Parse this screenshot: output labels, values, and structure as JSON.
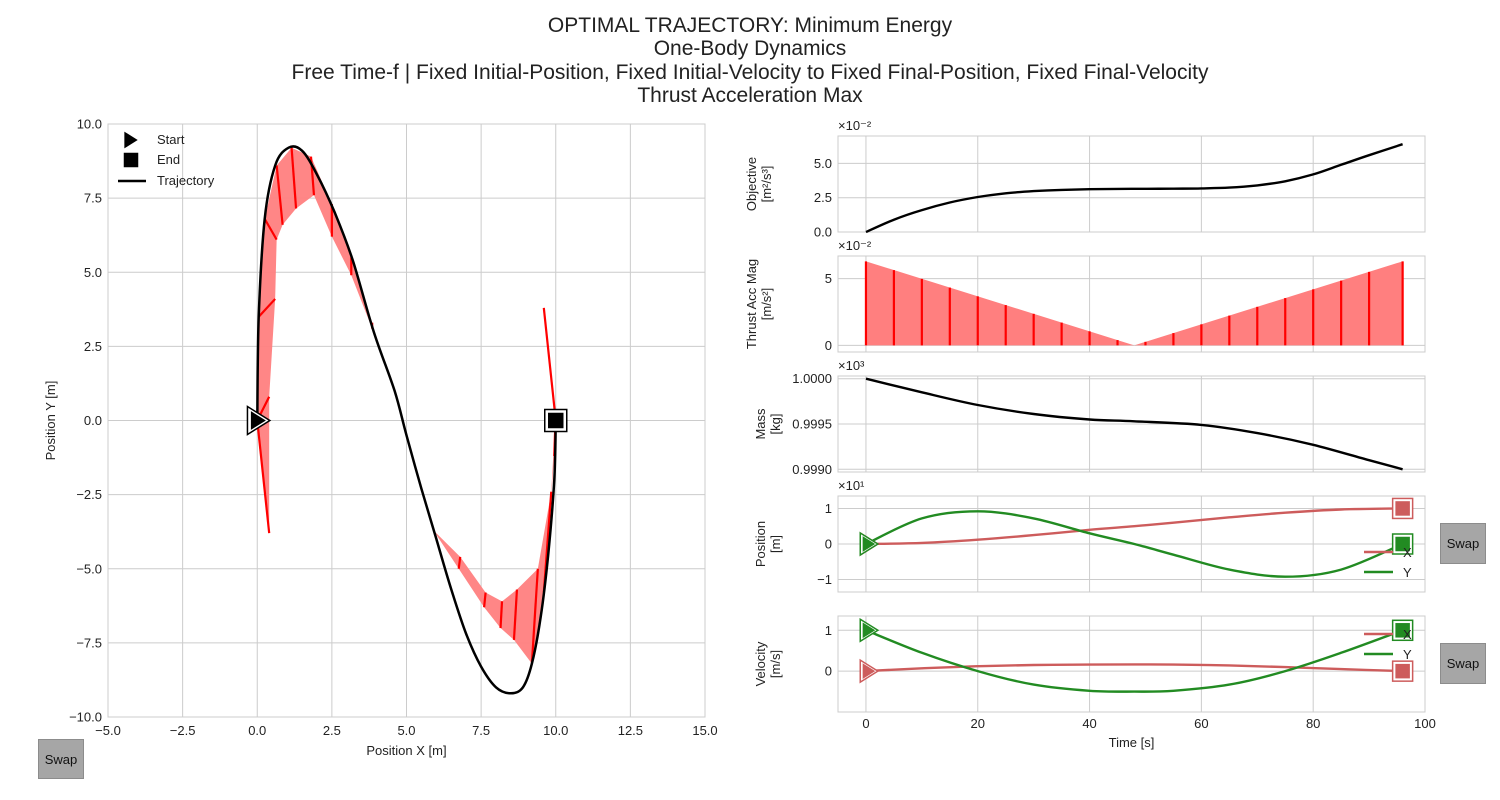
{
  "title_lines": [
    "OPTIMAL TRAJECTORY: Minimum Energy",
    "One-Body Dynamics",
    "Free Time-f | Fixed Initial-Position, Fixed Initial-Velocity to Fixed Final-Position, Fixed Final-Velocity",
    "Thrust Acceleration Max"
  ],
  "buttons": {
    "swap_main": "Swap",
    "swap_position": "Swap",
    "swap_velocity": "Swap"
  },
  "colors": {
    "trajectory": "#000000",
    "thrust": "#ff0000",
    "thrust_fill": "#ff7f7f",
    "x_series": "#cd5c5c",
    "y_series": "#228b22",
    "grid": "#cccccc"
  },
  "chart_data": [
    {
      "type": "line",
      "id": "trajectory",
      "xlabel": "Position X [m]",
      "ylabel": "Position Y [m]",
      "xlim": [
        -5,
        15
      ],
      "ylim": [
        -10,
        10
      ],
      "xticks": [
        -5.0,
        -2.5,
        0.0,
        2.5,
        5.0,
        7.5,
        10.0,
        12.5,
        15.0
      ],
      "yticks": [
        -10.0,
        -7.5,
        -5.0,
        -2.5,
        0.0,
        2.5,
        5.0,
        7.5,
        10.0
      ],
      "xtick_labels": [
        "−5.0",
        "−2.5",
        "0.0",
        "2.5",
        "5.0",
        "7.5",
        "10.0",
        "12.5",
        "15.0"
      ],
      "ytick_labels": [
        "−10.0",
        "−7.5",
        "−5.0",
        "−2.5",
        "0.0",
        "2.5",
        "5.0",
        "7.5",
        "10.0"
      ],
      "grid": true,
      "legend": {
        "placement": "top-left",
        "entries": [
          "Start",
          "End",
          "Trajectory"
        ]
      },
      "x": [
        0.0,
        0.05,
        0.25,
        0.6,
        1.05,
        1.5,
        2.0,
        2.6,
        3.2,
        3.9,
        4.6,
        5.0,
        5.5,
        6.0,
        6.5,
        7.0,
        7.5,
        8.0,
        8.5,
        8.9,
        9.2,
        9.5,
        9.75,
        9.95,
        10.0
      ],
      "y": [
        0.0,
        3.5,
        6.8,
        8.6,
        9.2,
        9.1,
        8.3,
        7.0,
        5.4,
        3.0,
        1.0,
        -0.5,
        -2.3,
        -4.0,
        -5.7,
        -7.2,
        -8.3,
        -9.0,
        -9.2,
        -9.0,
        -8.2,
        -6.6,
        -4.5,
        -2.0,
        0.0
      ],
      "thrust_arrows": [
        {
          "x": 0.0,
          "y": 0.0,
          "dx": 0.4,
          "dy": -3.8
        },
        {
          "x": 0.0,
          "y": 0.0,
          "dx": 0.4,
          "dy": 0.8
        },
        {
          "x": 0.05,
          "y": 3.5,
          "dx": 0.55,
          "dy": 0.6
        },
        {
          "x": 0.25,
          "y": 6.8,
          "dx": 0.4,
          "dy": -0.7
        },
        {
          "x": 0.65,
          "y": 8.6,
          "dx": 0.2,
          "dy": -2.0
        },
        {
          "x": 1.15,
          "y": 9.2,
          "dx": 0.15,
          "dy": -2.05
        },
        {
          "x": 1.8,
          "y": 8.9,
          "dx": 0.1,
          "dy": -1.3
        },
        {
          "x": 2.5,
          "y": 7.3,
          "dx": 0.0,
          "dy": -1.1
        },
        {
          "x": 3.15,
          "y": 5.5,
          "dx": 0.0,
          "dy": -0.6
        },
        {
          "x": 3.85,
          "y": 3.3,
          "dx": 0.0,
          "dy": -0.2
        },
        {
          "x": 5.9,
          "y": -3.7,
          "dx": 0.0,
          "dy": 0.0
        },
        {
          "x": 6.75,
          "y": -5.0,
          "dx": 0.05,
          "dy": 0.4
        },
        {
          "x": 7.6,
          "y": -6.3,
          "dx": 0.05,
          "dy": 0.5
        },
        {
          "x": 8.15,
          "y": -7.0,
          "dx": 0.05,
          "dy": 0.9
        },
        {
          "x": 8.6,
          "y": -7.4,
          "dx": 0.1,
          "dy": 1.7
        },
        {
          "x": 9.2,
          "y": -8.2,
          "dx": 0.2,
          "dy": 3.2
        },
        {
          "x": 9.6,
          "y": -5.8,
          "dx": 0.25,
          "dy": 3.4
        },
        {
          "x": 9.95,
          "y": -1.2,
          "dx": 0.05,
          "dy": 1.5
        },
        {
          "x": 10.0,
          "y": 0.0,
          "dx": -0.4,
          "dy": 3.8
        }
      ],
      "start": {
        "label": "Start",
        "x": 0.0,
        "y": 0.0
      },
      "end": {
        "label": "End",
        "x": 10.0,
        "y": 0.0
      }
    },
    {
      "type": "line",
      "id": "objective",
      "ylabel_lines": [
        "Objective",
        "[m²/s³]"
      ],
      "multiplier": "×10⁻²",
      "xlim": [
        -5,
        100
      ],
      "ylim": [
        0,
        7
      ],
      "yticks": [
        0.0,
        2.5,
        5.0
      ],
      "ytick_labels": [
        "0.0",
        "2.5",
        "5.0"
      ],
      "grid": true,
      "x": [
        0,
        5,
        10,
        15,
        20,
        25,
        30,
        35,
        40,
        45,
        50,
        55,
        60,
        65,
        70,
        75,
        80,
        85,
        90,
        96
      ],
      "y": [
        0.0,
        0.9,
        1.6,
        2.15,
        2.55,
        2.82,
        2.98,
        3.07,
        3.12,
        3.14,
        3.15,
        3.16,
        3.18,
        3.24,
        3.4,
        3.7,
        4.2,
        4.9,
        5.6,
        6.4
      ]
    },
    {
      "type": "area",
      "id": "thrust_acc_mag",
      "ylabel_lines": [
        "Thrust Acc Mag",
        "[m/s²]"
      ],
      "multiplier": "×10⁻²",
      "xlim": [
        -5,
        100
      ],
      "ylim": [
        -0.5,
        6.7
      ],
      "yticks": [
        0,
        5
      ],
      "ytick_labels": [
        "0",
        "5"
      ],
      "grid": true,
      "x": [
        0,
        48,
        96
      ],
      "y": [
        6.3,
        0.0,
        6.3
      ],
      "stem_x": [
        0,
        5,
        10,
        15,
        20,
        25,
        30,
        35,
        40,
        45,
        50,
        55,
        60,
        65,
        70,
        75,
        80,
        85,
        90,
        96
      ]
    },
    {
      "type": "line",
      "id": "mass",
      "ylabel_lines": [
        "Mass",
        "[kg]"
      ],
      "multiplier": "×10³",
      "xlim": [
        -5,
        100
      ],
      "ylim": [
        0.99897,
        1.00003
      ],
      "yticks": [
        0.999,
        0.9995,
        1.0
      ],
      "ytick_labels": [
        "0.9990",
        "0.9995",
        "1.0000"
      ],
      "grid": true,
      "x": [
        0,
        10,
        20,
        30,
        40,
        48,
        60,
        70,
        80,
        90,
        96
      ],
      "y": [
        1.0,
        0.99985,
        0.99971,
        0.99961,
        0.99955,
        0.99953,
        0.99949,
        0.9994,
        0.99927,
        0.9991,
        0.999
      ]
    },
    {
      "type": "line",
      "id": "position",
      "ylabel_lines": [
        "Position",
        "[m]"
      ],
      "multiplier": "×10¹",
      "xlim": [
        -5,
        100
      ],
      "ylim": [
        -1.35,
        1.35
      ],
      "yticks": [
        -1,
        0,
        1
      ],
      "ytick_labels": [
        "−1",
        "0",
        "1"
      ],
      "grid": true,
      "legend": {
        "placement": "right",
        "entries": [
          "X",
          "Y"
        ]
      },
      "x": [
        0,
        10,
        20,
        30,
        40,
        48,
        55,
        65,
        75,
        85,
        96
      ],
      "series": [
        {
          "name": "X",
          "values": [
            0.0,
            0.03,
            0.12,
            0.25,
            0.4,
            0.5,
            0.6,
            0.75,
            0.88,
            0.97,
            1.0
          ]
        },
        {
          "name": "Y",
          "values": [
            0.0,
            0.72,
            0.92,
            0.72,
            0.3,
            0.0,
            -0.3,
            -0.72,
            -0.92,
            -0.72,
            0.0
          ]
        }
      ]
    },
    {
      "type": "line",
      "id": "velocity",
      "ylabel_lines": [
        "Velocity",
        "[m/s]"
      ],
      "xlim": [
        -5,
        100
      ],
      "ylim": [
        -1.0,
        1.35
      ],
      "yticks": [
        0,
        1
      ],
      "ytick_labels": [
        "0",
        "1"
      ],
      "grid": true,
      "xlabel": "Time [s]",
      "xticks": [
        0,
        20,
        40,
        60,
        80,
        100
      ],
      "xtick_labels": [
        "0",
        "20",
        "40",
        "60",
        "80",
        "100"
      ],
      "legend": {
        "placement": "right",
        "entries": [
          "X",
          "Y"
        ]
      },
      "x": [
        0,
        10,
        20,
        30,
        40,
        48,
        55,
        65,
        75,
        85,
        96
      ],
      "series": [
        {
          "name": "X",
          "values": [
            0.0,
            0.07,
            0.12,
            0.15,
            0.16,
            0.165,
            0.16,
            0.14,
            0.1,
            0.05,
            0.0
          ]
        },
        {
          "name": "Y",
          "values": [
            1.0,
            0.45,
            0.0,
            -0.33,
            -0.48,
            -0.5,
            -0.48,
            -0.33,
            0.0,
            0.45,
            1.0
          ]
        }
      ]
    }
  ]
}
